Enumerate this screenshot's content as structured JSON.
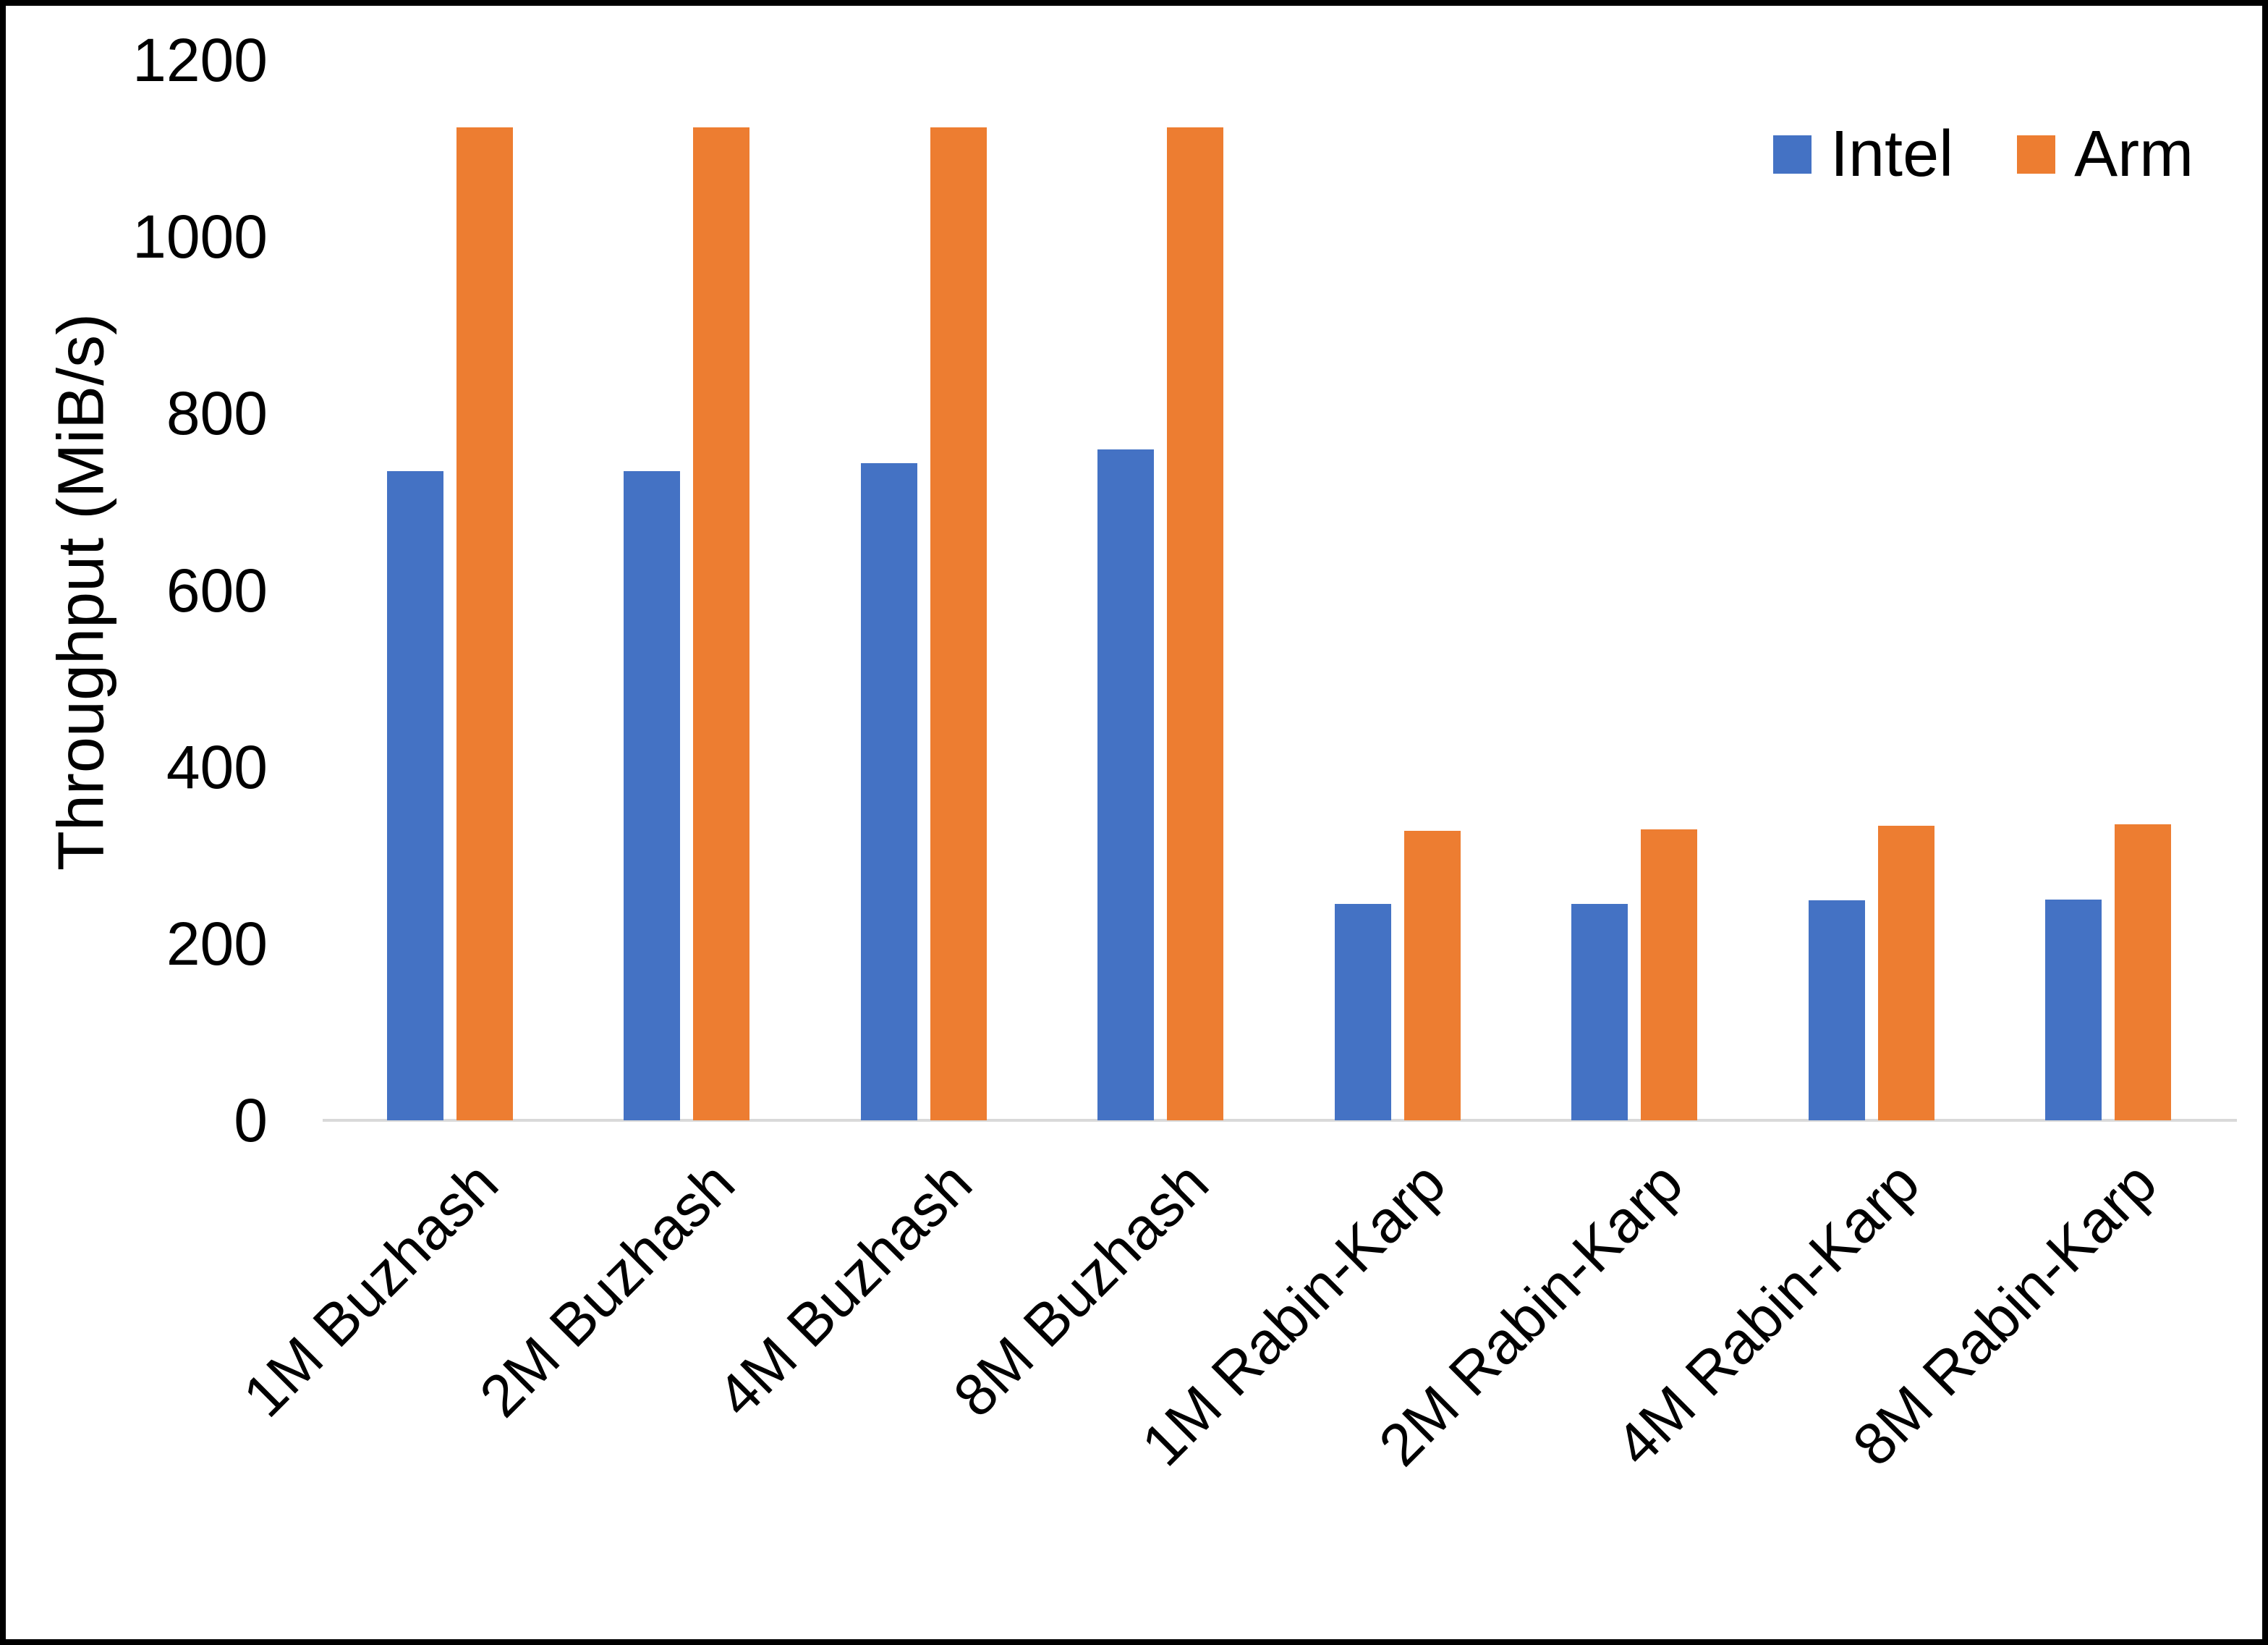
{
  "chart_data": {
    "type": "bar",
    "title": "",
    "categories": [
      "1M Buzhash",
      "2M Buzhash",
      "4M Buzhash",
      "8M Buzhash",
      "1M Rabin-Karp",
      "2M Rabin-Karp",
      "4M Rabin-Karp",
      "8M Rabin-Karp"
    ],
    "series": [
      {
        "name": "Intel",
        "color": "#4472C4",
        "values": [
          735,
          735,
          744,
          759,
          245,
          245,
          249,
          250
        ]
      },
      {
        "name": "Arm",
        "color": "#ED7D31",
        "values": [
          1124,
          1124,
          1124,
          1124,
          328,
          329,
          333,
          335
        ]
      }
    ],
    "xlabel": "",
    "ylabel": "Throughput (MiB/s)",
    "ylim": [
      0,
      1200
    ],
    "yticks": [
      0,
      200,
      400,
      600,
      800,
      1000,
      1200
    ],
    "grid": false,
    "legend_position": "top-right"
  },
  "colors": {
    "intel": "#4472C4",
    "arm": "#ED7D31",
    "axis_line": "#D9D9D9",
    "text": "#000000",
    "frame": "#000000",
    "background": "#FFFFFF"
  }
}
